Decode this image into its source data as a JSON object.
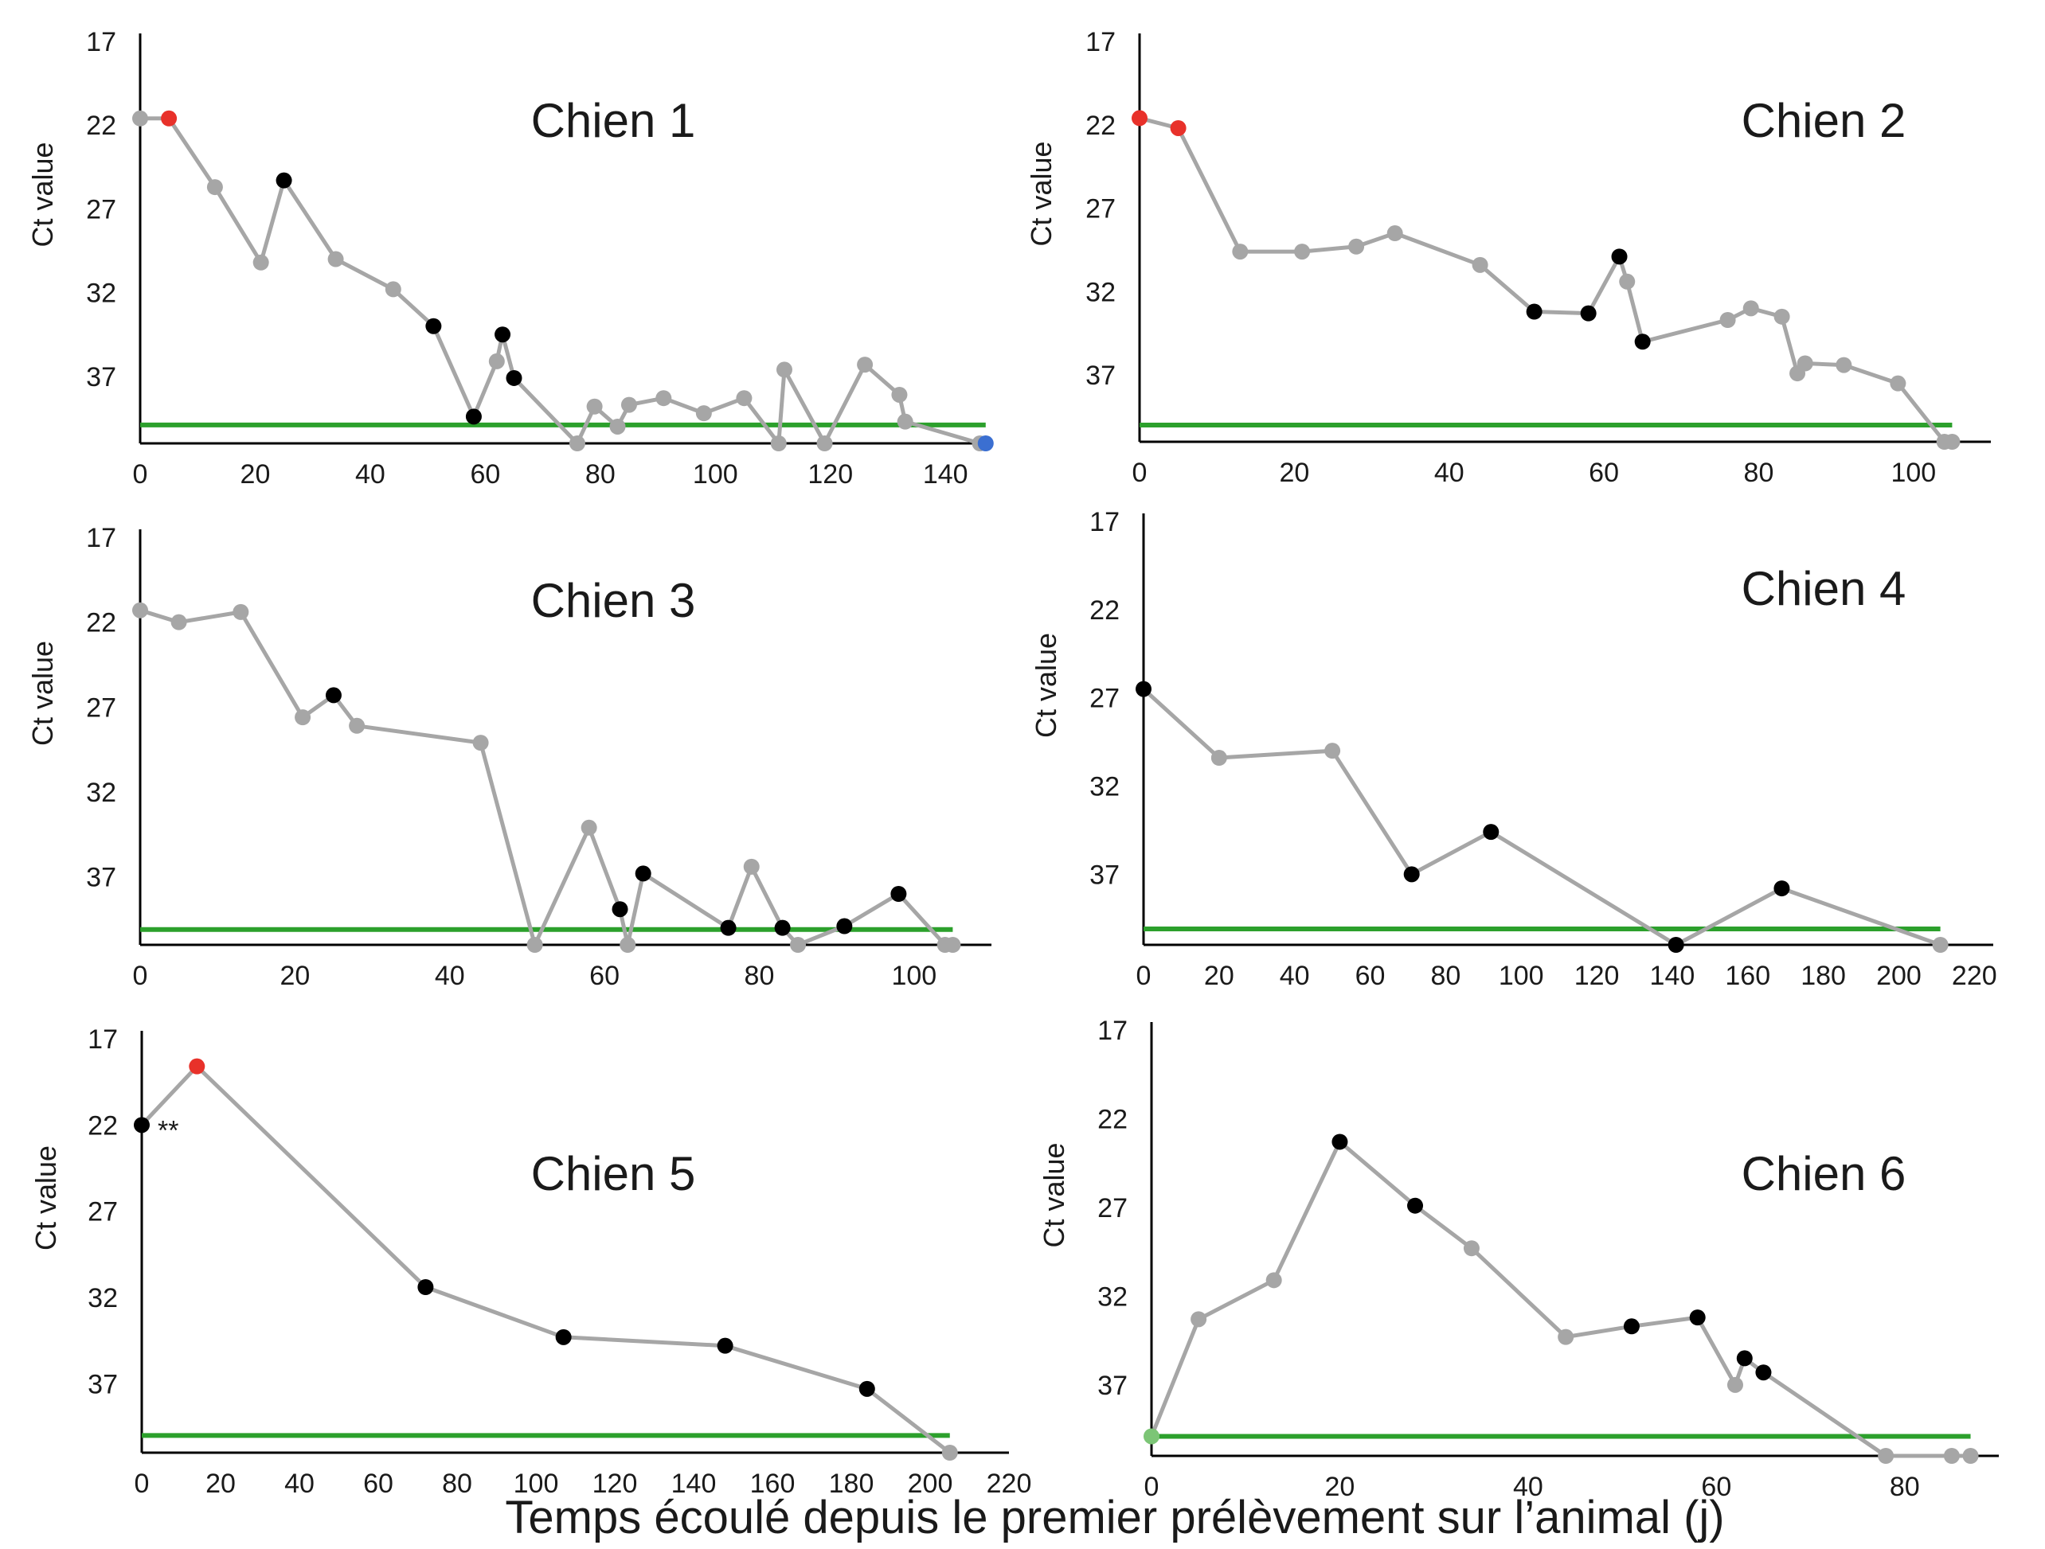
{
  "x_axis_caption": "Temps écoulé depuis le premier prélèvement sur l’animal (j)",
  "colors": {
    "line": "#a6a6a6",
    "threshold": "#2ca02c",
    "point_gray": "#a6a6a6",
    "point_black": "#000000",
    "point_red": "#e8312a",
    "point_blue": "#3b6fd1",
    "point_green": "#7cc576"
  },
  "chart_data": [
    {
      "type": "line",
      "title": "Chien 1",
      "ylabel": "Ct value",
      "xlabel": "",
      "ylim": [
        17,
        41
      ],
      "xlim": [
        0,
        148
      ],
      "xticks": [
        0,
        20,
        40,
        60,
        80,
        100,
        120,
        140
      ],
      "yticks": [
        17,
        22,
        27,
        32,
        37
      ],
      "threshold": 39.9,
      "grid": false,
      "points": [
        {
          "x": 0,
          "y": 21.6,
          "c": "gray"
        },
        {
          "x": 5,
          "y": 21.6,
          "c": "red"
        },
        {
          "x": 13,
          "y": 25.7,
          "c": "gray"
        },
        {
          "x": 21,
          "y": 30.2,
          "c": "gray"
        },
        {
          "x": 25,
          "y": 25.3,
          "c": "black"
        },
        {
          "x": 34,
          "y": 30.0,
          "c": "gray"
        },
        {
          "x": 44,
          "y": 31.8,
          "c": "gray"
        },
        {
          "x": 51,
          "y": 34.0,
          "c": "black"
        },
        {
          "x": 58,
          "y": 39.4,
          "c": "black"
        },
        {
          "x": 62,
          "y": 36.1,
          "c": "gray"
        },
        {
          "x": 63,
          "y": 34.5,
          "c": "black"
        },
        {
          "x": 65,
          "y": 37.1,
          "c": "black"
        },
        {
          "x": 76,
          "y": 41.0,
          "c": "gray"
        },
        {
          "x": 79,
          "y": 38.8,
          "c": "gray"
        },
        {
          "x": 83,
          "y": 40.0,
          "c": "gray"
        },
        {
          "x": 85,
          "y": 38.7,
          "c": "gray"
        },
        {
          "x": 91,
          "y": 38.3,
          "c": "gray"
        },
        {
          "x": 98,
          "y": 39.2,
          "c": "gray"
        },
        {
          "x": 105,
          "y": 38.3,
          "c": "gray"
        },
        {
          "x": 111,
          "y": 41.0,
          "c": "gray"
        },
        {
          "x": 112,
          "y": 36.6,
          "c": "gray"
        },
        {
          "x": 119,
          "y": 41.0,
          "c": "gray"
        },
        {
          "x": 126,
          "y": 36.3,
          "c": "gray"
        },
        {
          "x": 132,
          "y": 38.1,
          "c": "gray"
        },
        {
          "x": 133,
          "y": 39.7,
          "c": "gray"
        },
        {
          "x": 146,
          "y": 41.0,
          "c": "gray"
        },
        {
          "x": 147,
          "y": 41.0,
          "c": "blue"
        }
      ]
    },
    {
      "type": "line",
      "title": "Chien 2",
      "ylabel": "Ct value",
      "xlabel": "",
      "ylim": [
        17,
        41
      ],
      "xlim": [
        0,
        110
      ],
      "xticks": [
        0,
        20,
        40,
        60,
        80,
        100
      ],
      "yticks": [
        17,
        22,
        27,
        32,
        37
      ],
      "threshold": 40.0,
      "grid": false,
      "points": [
        {
          "x": 0,
          "y": 21.6,
          "c": "red"
        },
        {
          "x": 5,
          "y": 22.2,
          "c": "red"
        },
        {
          "x": 13,
          "y": 29.6,
          "c": "gray"
        },
        {
          "x": 21,
          "y": 29.6,
          "c": "gray"
        },
        {
          "x": 28,
          "y": 29.3,
          "c": "gray"
        },
        {
          "x": 33,
          "y": 28.5,
          "c": "gray"
        },
        {
          "x": 44,
          "y": 30.4,
          "c": "gray"
        },
        {
          "x": 51,
          "y": 33.2,
          "c": "black"
        },
        {
          "x": 58,
          "y": 33.3,
          "c": "black"
        },
        {
          "x": 62,
          "y": 29.9,
          "c": "black"
        },
        {
          "x": 63,
          "y": 31.4,
          "c": "gray"
        },
        {
          "x": 65,
          "y": 35.0,
          "c": "black"
        },
        {
          "x": 76,
          "y": 33.7,
          "c": "gray"
        },
        {
          "x": 79,
          "y": 33.0,
          "c": "gray"
        },
        {
          "x": 83,
          "y": 33.5,
          "c": "gray"
        },
        {
          "x": 85,
          "y": 36.9,
          "c": "gray"
        },
        {
          "x": 86,
          "y": 36.3,
          "c": "gray"
        },
        {
          "x": 91,
          "y": 36.4,
          "c": "gray"
        },
        {
          "x": 98,
          "y": 37.5,
          "c": "gray"
        },
        {
          "x": 104,
          "y": 41.0,
          "c": "gray"
        },
        {
          "x": 105,
          "y": 41.0,
          "c": "gray"
        }
      ]
    },
    {
      "type": "line",
      "title": "Chien 3",
      "ylabel": "Ct value",
      "xlabel": "",
      "ylim": [
        17,
        41
      ],
      "xlim": [
        0,
        110
      ],
      "xticks": [
        0,
        20,
        40,
        60,
        80,
        100
      ],
      "yticks": [
        17,
        22,
        27,
        32,
        37
      ],
      "threshold": 40.1,
      "grid": false,
      "points": [
        {
          "x": 0,
          "y": 21.3,
          "c": "gray"
        },
        {
          "x": 5,
          "y": 22.0,
          "c": "gray"
        },
        {
          "x": 13,
          "y": 21.4,
          "c": "gray"
        },
        {
          "x": 21,
          "y": 27.6,
          "c": "gray"
        },
        {
          "x": 25,
          "y": 26.3,
          "c": "black"
        },
        {
          "x": 28,
          "y": 28.1,
          "c": "gray"
        },
        {
          "x": 44,
          "y": 29.1,
          "c": "gray"
        },
        {
          "x": 51,
          "y": 41.0,
          "c": "gray"
        },
        {
          "x": 58,
          "y": 34.1,
          "c": "gray"
        },
        {
          "x": 62,
          "y": 38.9,
          "c": "black"
        },
        {
          "x": 63,
          "y": 41.0,
          "c": "gray"
        },
        {
          "x": 65,
          "y": 36.8,
          "c": "black"
        },
        {
          "x": 76,
          "y": 40.0,
          "c": "black"
        },
        {
          "x": 79,
          "y": 36.4,
          "c": "gray"
        },
        {
          "x": 83,
          "y": 40.0,
          "c": "black"
        },
        {
          "x": 85,
          "y": 41.0,
          "c": "gray"
        },
        {
          "x": 91,
          "y": 39.9,
          "c": "black"
        },
        {
          "x": 98,
          "y": 38.0,
          "c": "black"
        },
        {
          "x": 104,
          "y": 41.0,
          "c": "gray"
        },
        {
          "x": 105,
          "y": 41.0,
          "c": "gray"
        }
      ]
    },
    {
      "type": "line",
      "title": "Chien 4",
      "ylabel": "Ct value",
      "xlabel": "",
      "ylim": [
        17,
        41
      ],
      "xlim": [
        0,
        225
      ],
      "xticks": [
        0,
        20,
        40,
        60,
        80,
        100,
        120,
        140,
        160,
        180,
        200,
        220
      ],
      "yticks": [
        17,
        22,
        27,
        32,
        37
      ],
      "threshold": 40.1,
      "grid": false,
      "points": [
        {
          "x": 0,
          "y": 26.5,
          "c": "black"
        },
        {
          "x": 20,
          "y": 30.4,
          "c": "gray"
        },
        {
          "x": 50,
          "y": 30.0,
          "c": "gray"
        },
        {
          "x": 71,
          "y": 37.0,
          "c": "black"
        },
        {
          "x": 92,
          "y": 34.6,
          "c": "black"
        },
        {
          "x": 141,
          "y": 41.0,
          "c": "black"
        },
        {
          "x": 169,
          "y": 37.8,
          "c": "black"
        },
        {
          "x": 211,
          "y": 41.0,
          "c": "gray"
        }
      ]
    },
    {
      "type": "line",
      "title": "Chien 5",
      "ylabel": "Ct value",
      "xlabel": "",
      "ylim": [
        17,
        41
      ],
      "xlim": [
        0,
        220
      ],
      "xticks": [
        0,
        20,
        40,
        60,
        80,
        100,
        120,
        140,
        160,
        180,
        200,
        220
      ],
      "yticks": [
        17,
        22,
        27,
        32,
        37
      ],
      "threshold": 40.0,
      "grid": false,
      "annotation": "**",
      "points": [
        {
          "x": 0,
          "y": 22.0,
          "c": "black"
        },
        {
          "x": 14,
          "y": 18.6,
          "c": "red"
        },
        {
          "x": 72,
          "y": 31.4,
          "c": "black"
        },
        {
          "x": 107,
          "y": 34.3,
          "c": "black"
        },
        {
          "x": 148,
          "y": 34.8,
          "c": "black"
        },
        {
          "x": 184,
          "y": 37.3,
          "c": "black"
        },
        {
          "x": 205,
          "y": 41.0,
          "c": "gray"
        }
      ]
    },
    {
      "type": "line",
      "title": "Chien 6",
      "ylabel": "Ct value",
      "xlabel": "",
      "ylim": [
        17,
        41
      ],
      "xlim": [
        0,
        90
      ],
      "xticks": [
        0,
        20,
        40,
        60,
        80
      ],
      "yticks": [
        17,
        22,
        27,
        32,
        37
      ],
      "threshold": 39.9,
      "grid": false,
      "points": [
        {
          "x": 0,
          "y": 39.9,
          "c": "green"
        },
        {
          "x": 5,
          "y": 33.3,
          "c": "gray"
        },
        {
          "x": 13,
          "y": 31.1,
          "c": "gray"
        },
        {
          "x": 20,
          "y": 23.3,
          "c": "black"
        },
        {
          "x": 28,
          "y": 26.9,
          "c": "black"
        },
        {
          "x": 34,
          "y": 29.3,
          "c": "gray"
        },
        {
          "x": 44,
          "y": 34.3,
          "c": "gray"
        },
        {
          "x": 51,
          "y": 33.7,
          "c": "black"
        },
        {
          "x": 58,
          "y": 33.2,
          "c": "black"
        },
        {
          "x": 62,
          "y": 37.0,
          "c": "gray"
        },
        {
          "x": 63,
          "y": 35.5,
          "c": "black"
        },
        {
          "x": 65,
          "y": 36.3,
          "c": "black"
        },
        {
          "x": 78,
          "y": 41.0,
          "c": "gray"
        },
        {
          "x": 85,
          "y": 41.0,
          "c": "gray"
        },
        {
          "x": 87,
          "y": 41.0,
          "c": "gray"
        }
      ]
    }
  ]
}
